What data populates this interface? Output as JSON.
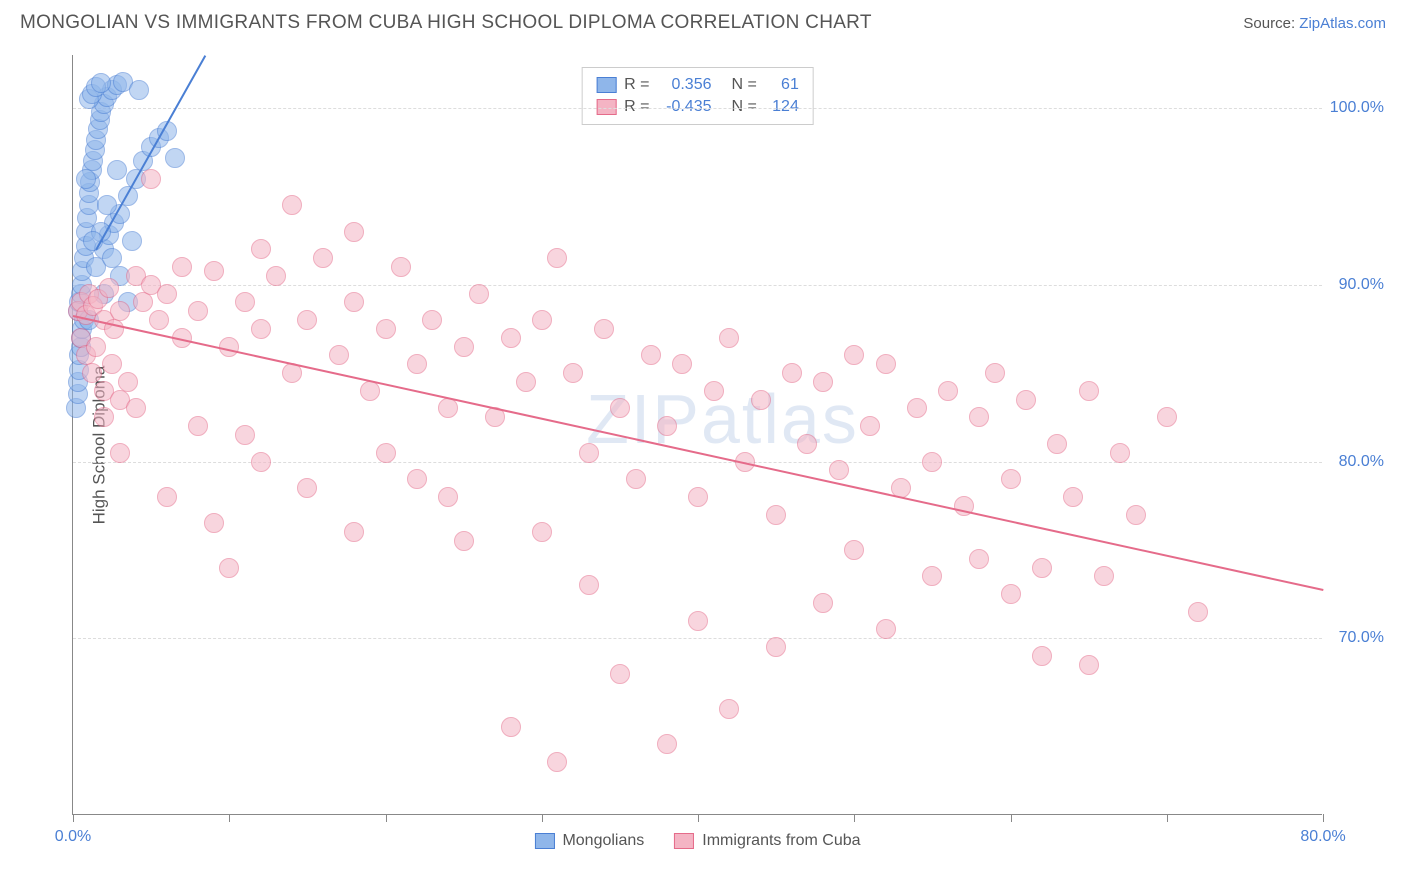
{
  "header": {
    "title": "MONGOLIAN VS IMMIGRANTS FROM CUBA HIGH SCHOOL DIPLOMA CORRELATION CHART",
    "source_prefix": "Source: ",
    "source_link": "ZipAtlas.com"
  },
  "chart": {
    "type": "scatter",
    "y_axis_label": "High School Diploma",
    "background_color": "#ffffff",
    "grid_color": "#dddddd",
    "axis_color": "#888888",
    "xlim": [
      0,
      80
    ],
    "ylim": [
      60,
      103
    ],
    "x_ticks": [
      0,
      10,
      20,
      30,
      40,
      50,
      60,
      70,
      80
    ],
    "x_tick_labels": {
      "0": "0.0%",
      "80": "80.0%"
    },
    "y_ticks": [
      70,
      80,
      90,
      100
    ],
    "y_tick_labels": {
      "70": "70.0%",
      "80": "80.0%",
      "90": "90.0%",
      "100": "100.0%"
    },
    "watermark": "ZIPatlas",
    "marker_radius": 10,
    "marker_opacity": 0.55,
    "series": [
      {
        "name": "Mongolians",
        "fill_color": "#8fb6ea",
        "stroke_color": "#4a7fd4",
        "trend_color": "#4a7fd4",
        "R_label": "R =",
        "R_value": "0.356",
        "N_label": "N =",
        "N_value": "61",
        "trendline": {
          "x1": 1.5,
          "y1": 92.0,
          "x2": 8.5,
          "y2": 103.0
        },
        "points": [
          [
            0.3,
            88.5
          ],
          [
            0.4,
            89.0
          ],
          [
            0.5,
            89.5
          ],
          [
            0.6,
            90.0
          ],
          [
            0.6,
            90.8
          ],
          [
            0.7,
            91.5
          ],
          [
            0.8,
            92.2
          ],
          [
            0.8,
            93.0
          ],
          [
            0.9,
            93.8
          ],
          [
            1.0,
            94.5
          ],
          [
            1.0,
            95.2
          ],
          [
            1.1,
            95.8
          ],
          [
            1.2,
            96.5
          ],
          [
            1.3,
            97.0
          ],
          [
            1.4,
            97.6
          ],
          [
            1.5,
            98.2
          ],
          [
            1.6,
            98.8
          ],
          [
            1.7,
            99.3
          ],
          [
            1.8,
            99.8
          ],
          [
            2.0,
            100.2
          ],
          [
            2.2,
            100.6
          ],
          [
            2.5,
            101.0
          ],
          [
            2.8,
            101.3
          ],
          [
            3.2,
            101.5
          ],
          [
            0.2,
            83.0
          ],
          [
            0.3,
            83.8
          ],
          [
            0.3,
            84.5
          ],
          [
            0.4,
            85.2
          ],
          [
            0.4,
            86.0
          ],
          [
            0.5,
            86.5
          ],
          [
            0.5,
            87.0
          ],
          [
            0.6,
            87.5
          ],
          [
            0.7,
            88.0
          ],
          [
            1.0,
            100.5
          ],
          [
            1.2,
            100.8
          ],
          [
            1.5,
            101.2
          ],
          [
            1.8,
            101.4
          ],
          [
            2.0,
            92.0
          ],
          [
            2.3,
            92.8
          ],
          [
            2.6,
            93.5
          ],
          [
            3.0,
            94.0
          ],
          [
            3.5,
            95.0
          ],
          [
            4.0,
            96.0
          ],
          [
            4.5,
            97.0
          ],
          [
            5.0,
            97.8
          ],
          [
            5.5,
            98.3
          ],
          [
            6.0,
            98.7
          ],
          [
            6.5,
            97.2
          ],
          [
            3.0,
            90.5
          ],
          [
            3.5,
            89.0
          ],
          [
            1.5,
            91.0
          ],
          [
            2.0,
            89.5
          ],
          [
            2.5,
            91.5
          ],
          [
            1.8,
            93.0
          ],
          [
            2.2,
            94.5
          ],
          [
            4.2,
            101.0
          ],
          [
            1.0,
            88.0
          ],
          [
            1.3,
            92.5
          ],
          [
            0.8,
            96.0
          ],
          [
            2.8,
            96.5
          ],
          [
            3.8,
            92.5
          ]
        ]
      },
      {
        "name": "Immigrants from Cuba",
        "fill_color": "#f4b4c4",
        "stroke_color": "#e56b8a",
        "trend_color": "#e56b8a",
        "R_label": "R =",
        "R_value": "-0.435",
        "N_label": "N =",
        "N_value": "124",
        "trendline": {
          "x1": 0.0,
          "y1": 88.3,
          "x2": 80.0,
          "y2": 72.8
        },
        "points": [
          [
            0.3,
            88.5
          ],
          [
            0.5,
            89.0
          ],
          [
            0.8,
            88.3
          ],
          [
            1.0,
            89.5
          ],
          [
            1.3,
            88.8
          ],
          [
            1.6,
            89.2
          ],
          [
            2.0,
            88.0
          ],
          [
            2.3,
            89.8
          ],
          [
            2.6,
            87.5
          ],
          [
            3.0,
            88.5
          ],
          [
            0.5,
            87.0
          ],
          [
            0.8,
            86.0
          ],
          [
            1.2,
            85.0
          ],
          [
            1.5,
            86.5
          ],
          [
            2.0,
            84.0
          ],
          [
            2.5,
            85.5
          ],
          [
            3.0,
            83.5
          ],
          [
            3.5,
            84.5
          ],
          [
            4.0,
            90.5
          ],
          [
            4.5,
            89.0
          ],
          [
            5.0,
            90.0
          ],
          [
            5.5,
            88.0
          ],
          [
            6.0,
            89.5
          ],
          [
            7.0,
            87.0
          ],
          [
            8.0,
            88.5
          ],
          [
            9.0,
            90.8
          ],
          [
            10.0,
            86.5
          ],
          [
            11.0,
            89.0
          ],
          [
            12.0,
            87.5
          ],
          [
            13.0,
            90.5
          ],
          [
            14.0,
            85.0
          ],
          [
            15.0,
            88.0
          ],
          [
            16.0,
            91.5
          ],
          [
            17.0,
            86.0
          ],
          [
            18.0,
            89.0
          ],
          [
            19.0,
            84.0
          ],
          [
            20.0,
            87.5
          ],
          [
            21.0,
            91.0
          ],
          [
            22.0,
            85.5
          ],
          [
            23.0,
            88.0
          ],
          [
            24.0,
            83.0
          ],
          [
            25.0,
            86.5
          ],
          [
            26.0,
            89.5
          ],
          [
            27.0,
            82.5
          ],
          [
            28.0,
            87.0
          ],
          [
            29.0,
            84.5
          ],
          [
            30.0,
            88.0
          ],
          [
            31.0,
            91.5
          ],
          [
            32.0,
            85.0
          ],
          [
            33.0,
            80.5
          ],
          [
            34.0,
            87.5
          ],
          [
            35.0,
            83.0
          ],
          [
            36.0,
            79.0
          ],
          [
            37.0,
            86.0
          ],
          [
            38.0,
            82.0
          ],
          [
            39.0,
            85.5
          ],
          [
            40.0,
            78.0
          ],
          [
            41.0,
            84.0
          ],
          [
            42.0,
            87.0
          ],
          [
            43.0,
            80.0
          ],
          [
            44.0,
            83.5
          ],
          [
            45.0,
            77.0
          ],
          [
            46.0,
            85.0
          ],
          [
            47.0,
            81.0
          ],
          [
            48.0,
            84.5
          ],
          [
            49.0,
            79.5
          ],
          [
            50.0,
            86.0
          ],
          [
            51.0,
            82.0
          ],
          [
            52.0,
            85.5
          ],
          [
            53.0,
            78.5
          ],
          [
            54.0,
            83.0
          ],
          [
            55.0,
            80.0
          ],
          [
            56.0,
            84.0
          ],
          [
            57.0,
            77.5
          ],
          [
            58.0,
            82.5
          ],
          [
            59.0,
            85.0
          ],
          [
            60.0,
            79.0
          ],
          [
            61.0,
            83.5
          ],
          [
            62.0,
            74.0
          ],
          [
            63.0,
            81.0
          ],
          [
            64.0,
            78.0
          ],
          [
            65.0,
            84.0
          ],
          [
            66.0,
            73.5
          ],
          [
            67.0,
            80.5
          ],
          [
            68.0,
            77.0
          ],
          [
            70.0,
            82.5
          ],
          [
            72.0,
            71.5
          ],
          [
            8.0,
            82.0
          ],
          [
            10.0,
            74.0
          ],
          [
            12.0,
            80.0
          ],
          [
            15.0,
            78.5
          ],
          [
            18.0,
            76.0
          ],
          [
            22.0,
            79.0
          ],
          [
            25.0,
            75.5
          ],
          [
            28.0,
            65.0
          ],
          [
            30.0,
            76.0
          ],
          [
            33.0,
            73.0
          ],
          [
            35.0,
            68.0
          ],
          [
            38.0,
            64.0
          ],
          [
            40.0,
            71.0
          ],
          [
            42.0,
            66.0
          ],
          [
            45.0,
            69.5
          ],
          [
            48.0,
            72.0
          ],
          [
            50.0,
            75.0
          ],
          [
            52.0,
            70.5
          ],
          [
            55.0,
            73.5
          ],
          [
            58.0,
            74.5
          ],
          [
            60.0,
            72.5
          ],
          [
            62.0,
            69.0
          ],
          [
            65.0,
            68.5
          ],
          [
            5.0,
            96.0
          ],
          [
            14.0,
            94.5
          ],
          [
            18.0,
            93.0
          ],
          [
            12.0,
            92.0
          ],
          [
            7.0,
            91.0
          ],
          [
            3.0,
            80.5
          ],
          [
            6.0,
            78.0
          ],
          [
            9.0,
            76.5
          ],
          [
            11.0,
            81.5
          ],
          [
            4.0,
            83.0
          ],
          [
            20.0,
            80.5
          ],
          [
            24.0,
            78.0
          ],
          [
            31.0,
            63.0
          ],
          [
            2.0,
            82.5
          ]
        ]
      }
    ],
    "bottom_legend": [
      {
        "swatch_fill": "#8fb6ea",
        "swatch_stroke": "#4a7fd4",
        "label": "Mongolians"
      },
      {
        "swatch_fill": "#f4b4c4",
        "swatch_stroke": "#e56b8a",
        "label": "Immigrants from Cuba"
      }
    ]
  }
}
